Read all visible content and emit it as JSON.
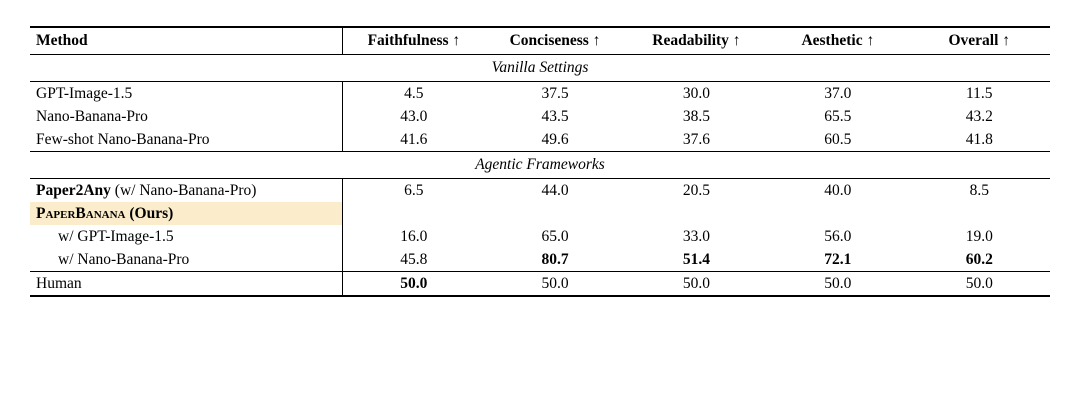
{
  "colors": {
    "highlight": "#FBEDCB",
    "rule": "#000000",
    "text": "#000000",
    "background": "#FFFFFF"
  },
  "table": {
    "columns": [
      {
        "label": "Method"
      },
      {
        "label": "Faithfulness ↑"
      },
      {
        "label": "Conciseness ↑"
      },
      {
        "label": "Readability ↑"
      },
      {
        "label": "Aesthetic ↑"
      },
      {
        "label": "Overall ↑"
      }
    ],
    "rows": [
      {
        "type": "section",
        "label": "Vanilla Settings"
      },
      {
        "type": "data",
        "method": [
          {
            "text": "GPT-Image-1.5",
            "bold": false
          }
        ],
        "values": [
          {
            "v": "4.5"
          },
          {
            "v": "37.5"
          },
          {
            "v": "30.0"
          },
          {
            "v": "37.0"
          },
          {
            "v": "11.5"
          }
        ]
      },
      {
        "type": "data",
        "method": [
          {
            "text": "Nano-Banana-Pro",
            "bold": false
          }
        ],
        "values": [
          {
            "v": "43.0"
          },
          {
            "v": "43.5"
          },
          {
            "v": "38.5"
          },
          {
            "v": "65.5"
          },
          {
            "v": "43.2"
          }
        ]
      },
      {
        "type": "data",
        "method": [
          {
            "text": "Few-shot Nano-Banana-Pro",
            "bold": false
          }
        ],
        "values": [
          {
            "v": "41.6"
          },
          {
            "v": "49.6"
          },
          {
            "v": "37.6"
          },
          {
            "v": "60.5"
          },
          {
            "v": "41.8"
          }
        ]
      },
      {
        "type": "section",
        "label": "Agentic Frameworks"
      },
      {
        "type": "data",
        "method": [
          {
            "text": "Paper2Any",
            "bold": true
          },
          {
            "text": " (w/ Nano-Banana-Pro)",
            "bold": false
          }
        ],
        "values": [
          {
            "v": "6.5"
          },
          {
            "v": "44.0"
          },
          {
            "v": "20.5"
          },
          {
            "v": "40.0"
          },
          {
            "v": "8.5"
          }
        ]
      },
      {
        "type": "data",
        "highlight": true,
        "method": [
          {
            "text": "PaperBanana",
            "bold": true,
            "smallcaps": true
          },
          {
            "text": " (Ours)",
            "bold": true
          }
        ],
        "values": []
      },
      {
        "type": "data",
        "indent": true,
        "method": [
          {
            "text": "w/ GPT-Image-1.5",
            "bold": false
          }
        ],
        "values": [
          {
            "v": "16.0"
          },
          {
            "v": "65.0"
          },
          {
            "v": "33.0"
          },
          {
            "v": "56.0"
          },
          {
            "v": "19.0"
          }
        ]
      },
      {
        "type": "data",
        "indent": true,
        "method": [
          {
            "text": "w/ Nano-Banana-Pro",
            "bold": false
          }
        ],
        "values": [
          {
            "v": "45.8"
          },
          {
            "v": "80.7",
            "bold": true
          },
          {
            "v": "51.4",
            "bold": true
          },
          {
            "v": "72.1",
            "bold": true
          },
          {
            "v": "60.2",
            "bold": true
          }
        ]
      },
      {
        "type": "data",
        "rule_above": true,
        "method": [
          {
            "text": "Human",
            "bold": false
          }
        ],
        "values": [
          {
            "v": "50.0",
            "bold": true
          },
          {
            "v": "50.0"
          },
          {
            "v": "50.0"
          },
          {
            "v": "50.0"
          },
          {
            "v": "50.0"
          }
        ]
      }
    ]
  }
}
